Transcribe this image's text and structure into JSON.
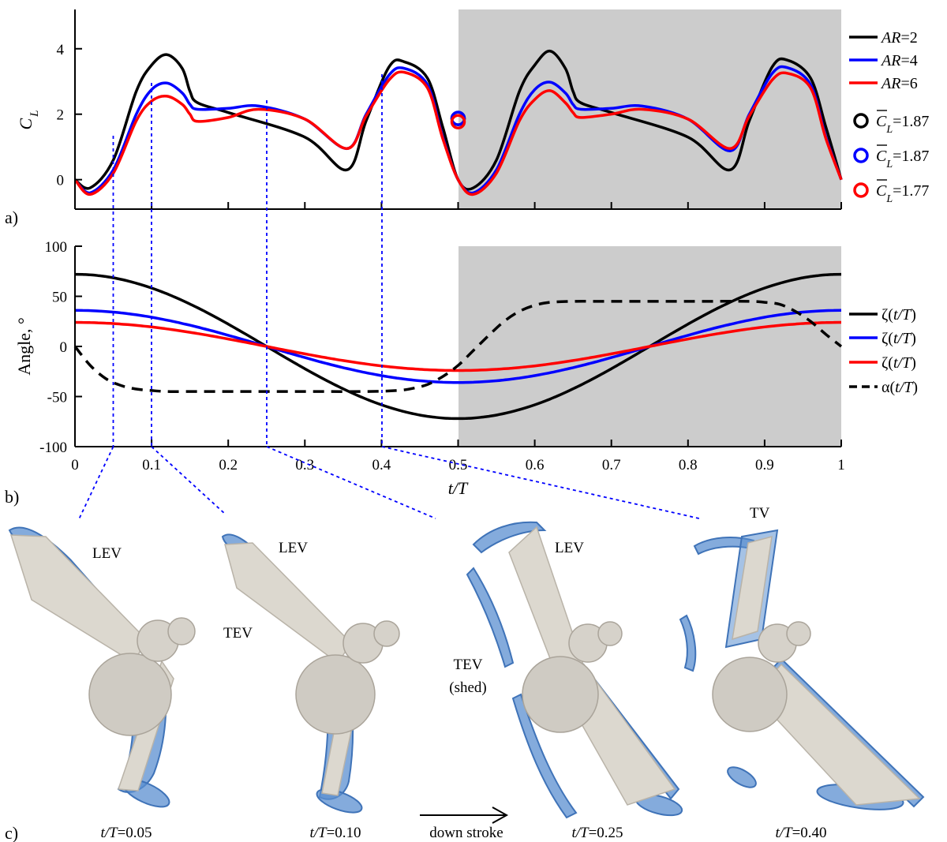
{
  "panels": {
    "a": "a)",
    "b": "b)",
    "c": "c)"
  },
  "colors": {
    "ar2": "#000000",
    "ar4": "#0000ff",
    "ar6": "#ff0000",
    "shade": "#cccccc",
    "guide": "#0000ff",
    "wing": "#dcd8cf",
    "body": "#cfcbc3",
    "vortex": "#5b8fd0"
  },
  "chart_data": [
    {
      "type": "line",
      "panel": "a",
      "ylabel_main": "C",
      "ylabel_sub": "L",
      "xlim": [
        0,
        1
      ],
      "ylim": [
        -0.9,
        5.2
      ],
      "yticks": [
        "0",
        "2",
        "4"
      ],
      "shaded_x": [
        0.5,
        1
      ],
      "grid": false,
      "legend_position": "right",
      "series": [
        {
          "name": "AR=2",
          "name_italic": "AR",
          "name_rest": "=2",
          "color": "#000000",
          "x": [
            0,
            0.02,
            0.05,
            0.08,
            0.1,
            0.12,
            0.14,
            0.15,
            0.16,
            0.2,
            0.3,
            0.355,
            0.38,
            0.41,
            0.43,
            0.46,
            0.48,
            0.5,
            0.52,
            0.55,
            0.58,
            0.6,
            0.62,
            0.64,
            0.65,
            0.66,
            0.7,
            0.8,
            0.855,
            0.88,
            0.91,
            0.93,
            0.96,
            0.98,
            1.0
          ],
          "y": [
            0,
            -0.25,
            0.6,
            2.7,
            3.5,
            3.82,
            3.4,
            2.7,
            2.35,
            2.05,
            1.3,
            0.3,
            1.8,
            3.45,
            3.6,
            3.1,
            1.6,
            0,
            -0.25,
            0.6,
            2.7,
            3.5,
            3.93,
            3.4,
            2.7,
            2.35,
            2.05,
            1.3,
            0.3,
            1.8,
            3.45,
            3.65,
            3.1,
            1.6,
            0
          ]
        },
        {
          "name": "AR=4",
          "name_italic": "AR",
          "name_rest": "=4",
          "color": "#0000ff",
          "x": [
            0,
            0.02,
            0.05,
            0.08,
            0.1,
            0.12,
            0.14,
            0.15,
            0.16,
            0.2,
            0.24,
            0.3,
            0.355,
            0.38,
            0.41,
            0.43,
            0.46,
            0.48,
            0.5,
            0.52,
            0.55,
            0.58,
            0.6,
            0.62,
            0.64,
            0.65,
            0.66,
            0.7,
            0.74,
            0.8,
            0.855,
            0.88,
            0.91,
            0.93,
            0.96,
            0.98,
            1.0
          ],
          "y": [
            0,
            -0.4,
            0.3,
            2.0,
            2.75,
            2.95,
            2.65,
            2.3,
            2.15,
            2.18,
            2.25,
            1.85,
            0.95,
            2.0,
            3.2,
            3.4,
            2.9,
            1.3,
            0,
            -0.4,
            0.3,
            2.0,
            2.75,
            2.98,
            2.65,
            2.3,
            2.15,
            2.18,
            2.25,
            1.85,
            0.88,
            2.0,
            3.25,
            3.42,
            2.9,
            1.3,
            0
          ]
        },
        {
          "name": "AR=6",
          "name_italic": "AR",
          "name_rest": "=6",
          "color": "#ff0000",
          "x": [
            0,
            0.02,
            0.05,
            0.08,
            0.1,
            0.12,
            0.14,
            0.15,
            0.16,
            0.2,
            0.24,
            0.3,
            0.355,
            0.38,
            0.41,
            0.43,
            0.46,
            0.48,
            0.5,
            0.52,
            0.55,
            0.58,
            0.6,
            0.62,
            0.64,
            0.65,
            0.66,
            0.7,
            0.74,
            0.8,
            0.855,
            0.88,
            0.91,
            0.93,
            0.96,
            0.98,
            1.0
          ],
          "y": [
            0,
            -0.45,
            0.2,
            1.8,
            2.4,
            2.55,
            2.3,
            2.0,
            1.78,
            1.9,
            2.15,
            1.85,
            0.95,
            1.95,
            3.05,
            3.28,
            2.8,
            1.25,
            0,
            -0.45,
            0.2,
            1.8,
            2.45,
            2.72,
            2.35,
            2.05,
            1.9,
            2.0,
            2.15,
            1.85,
            0.95,
            1.95,
            3.05,
            3.25,
            2.8,
            1.25,
            0
          ]
        }
      ],
      "mean_markers": [
        {
          "label_main": "C",
          "label_sub": "L",
          "label_value": "=1.87",
          "color": "#000000",
          "x": 0.5,
          "y": 1.87
        },
        {
          "label_main": "C",
          "label_sub": "L",
          "label_value": "=1.87",
          "color": "#0000ff",
          "x": 0.5,
          "y": 1.87
        },
        {
          "label_main": "C",
          "label_sub": "L",
          "label_value": "=1.77",
          "color": "#ff0000",
          "x": 0.5,
          "y": 1.77
        }
      ]
    },
    {
      "type": "line",
      "panel": "b",
      "ylabel": "Angle, °",
      "xlabel": "t/T",
      "xlim": [
        0,
        1
      ],
      "ylim": [
        -100,
        100
      ],
      "xticks": [
        "0",
        "0.1",
        "0.2",
        "0.3",
        "0.4",
        "0.5",
        "0.6",
        "0.7",
        "0.8",
        "0.9",
        "1"
      ],
      "yticks": [
        "-100",
        "-50",
        "0",
        "50",
        "100"
      ],
      "shaded_x": [
        0.5,
        1
      ],
      "grid": false,
      "legend_position": "right",
      "series": [
        {
          "name": "ζ(t/T)",
          "name_prefix": "ζ(",
          "name_italic": "t/T",
          "name_suffix": ")",
          "color": "#000000",
          "dashed": false,
          "amplitude": 72,
          "shape": "cos"
        },
        {
          "name": "ζ(t/T)",
          "name_prefix": "ζ(",
          "name_italic": "t/T",
          "name_suffix": ")",
          "color": "#0000ff",
          "dashed": false,
          "amplitude": 36,
          "shape": "cos"
        },
        {
          "name": "ζ(t/T)",
          "name_prefix": "ζ(",
          "name_italic": "t/T",
          "name_suffix": ")",
          "color": "#ff0000",
          "dashed": false,
          "amplitude": 24,
          "shape": "cos"
        },
        {
          "name": "α(t/T)",
          "name_prefix": "α(",
          "name_italic": "t/T",
          "name_suffix": ")",
          "color": "#000000",
          "dashed": true,
          "x": [
            0,
            0.02,
            0.04,
            0.06,
            0.08,
            0.1,
            0.12,
            0.15,
            0.2,
            0.3,
            0.38,
            0.42,
            0.44,
            0.46,
            0.48,
            0.5,
            0.52,
            0.54,
            0.56,
            0.58,
            0.6,
            0.62,
            0.65,
            0.7,
            0.8,
            0.88,
            0.9,
            0.92,
            0.94,
            0.96,
            0.98,
            1.0
          ],
          "y": [
            0,
            -19,
            -32,
            -39,
            -42.5,
            -44,
            -45,
            -45,
            -45,
            -45,
            -45,
            -44,
            -42,
            -38,
            -30,
            -19,
            -4,
            11,
            25,
            35,
            41,
            44,
            45,
            45,
            45,
            45,
            44,
            42,
            35,
            25,
            12,
            0
          ]
        }
      ]
    }
  ],
  "snapshots": [
    {
      "time_italic": "t/T",
      "time_value": "=0.05",
      "x_value": 0.05,
      "labels": [
        "LEV"
      ]
    },
    {
      "time_italic": "t/T",
      "time_value": "=0.10",
      "x_value": 0.1,
      "labels": [
        "LEV",
        "TEV"
      ]
    },
    {
      "time_italic": "t/T",
      "time_value": "=0.25",
      "x_value": 0.25,
      "labels": [
        "LEV",
        "TEV",
        "(shed)"
      ]
    },
    {
      "time_italic": "t/T",
      "time_value": "=0.40",
      "x_value": 0.4,
      "labels": [
        "TV"
      ]
    }
  ],
  "stroke_label": "down stroke"
}
